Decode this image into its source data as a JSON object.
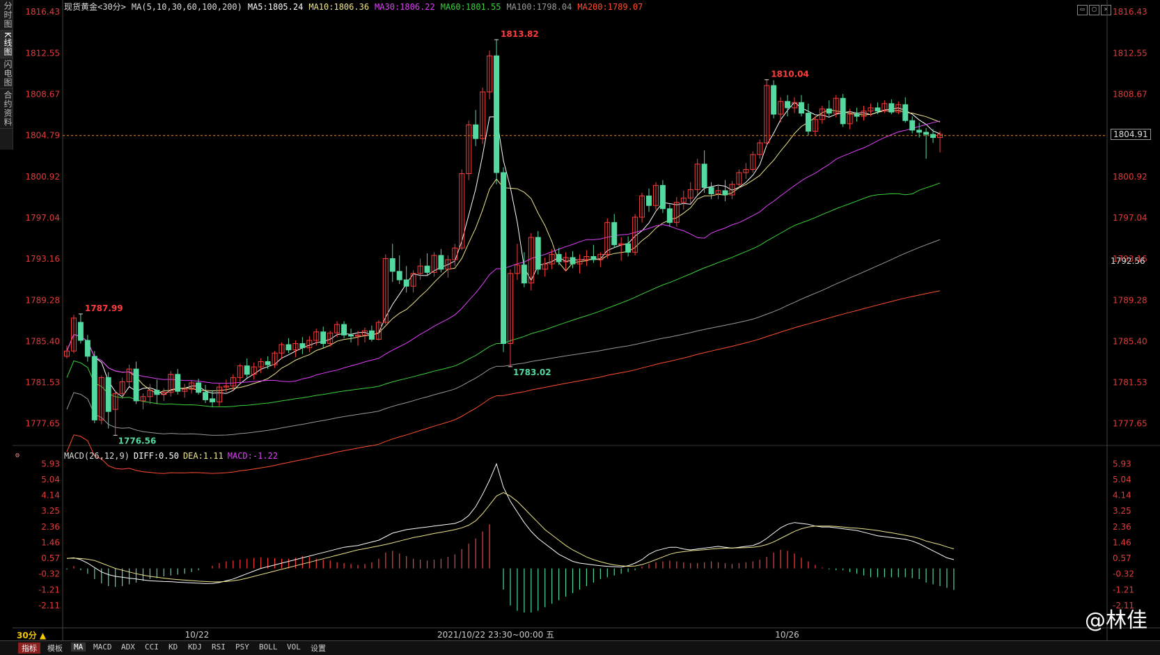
{
  "side_tabs": [
    "分时图",
    "K线图",
    "闪电图",
    "合约资料"
  ],
  "header": {
    "instrument": "现货黄金<30分>",
    "ma_params": "MA(5,10,30,60,100,200)",
    "ma5": "MA5:1805.24",
    "ma10": "MA10:1806.36",
    "ma30": "MA30:1806.22",
    "ma60": "MA60:1801.55",
    "ma100": "MA100:1798.04",
    "ma200": "MA200:1789.07"
  },
  "colors": {
    "up": "#ff3b3b",
    "down": "#54d9a0",
    "ma5": "#ffffff",
    "ma10": "#f0e68c",
    "ma30": "#e040fb",
    "ma60": "#3cd13c",
    "ma100": "#9a9a9a",
    "ma200": "#ff4d2e",
    "axis_text": "#e03b3b",
    "dashed_price": "#e08a30"
  },
  "price_axis": [
    "1816.43",
    "1812.55",
    "1808.67",
    "1804.79",
    "1800.92",
    "1797.04",
    "1793.16",
    "1789.28",
    "1785.40",
    "1781.53",
    "1777.65"
  ],
  "macd_header": {
    "label": "MACD(26,12,9)",
    "diff": "DIFF:0.50",
    "dea": "DEA:1.11",
    "macd": "MACD:-1.22"
  },
  "macd_axis": [
    "5.93",
    "5.04",
    "4.14",
    "3.25",
    "2.36",
    "1.46",
    "0.57",
    "-0.32",
    "-1.21",
    "-2.11"
  ],
  "x_axis": {
    "left_date": "10/22",
    "cursor_time": "2021/10/22 23:30~00:00 五",
    "right_date": "10/26"
  },
  "annotations": {
    "high1": "1787.99",
    "low1": "1776.56",
    "high2": "1813.82",
    "low2": "1783.02",
    "high3": "1810.04"
  },
  "current_price": "1804.91",
  "right_label_2": "1792.56",
  "dashed_price_label": "1804.79",
  "period_badge": "30分 ▲",
  "bottom_tabs": [
    "指标",
    "模板",
    "MA",
    "MACD",
    "ADX",
    "CCI",
    "KD",
    "KDJ",
    "RSI",
    "PSY",
    "BOLL",
    "VOL",
    "设置"
  ],
  "watermark": "@林佳",
  "chart_data": {
    "type": "candlestick",
    "ylim": [
      1775.6,
      1816.9
    ],
    "candles_ohlc": [
      [
        1784.0,
        1785.0,
        1783.8,
        1784.5
      ],
      [
        1784.5,
        1787.9,
        1784.3,
        1787.6
      ],
      [
        1787.2,
        1787.99,
        1785.2,
        1785.5
      ],
      [
        1785.5,
        1786.0,
        1783.5,
        1784.0
      ],
      [
        1784.0,
        1784.5,
        1777.7,
        1778.0
      ],
      [
        1778.0,
        1782.2,
        1777.6,
        1782.0
      ],
      [
        1782.0,
        1782.5,
        1777.2,
        1778.8
      ],
      [
        1779.0,
        1780.8,
        1776.56,
        1780.5
      ],
      [
        1780.5,
        1782.0,
        1780.0,
        1781.6
      ],
      [
        1781.6,
        1783.2,
        1781.2,
        1782.8
      ],
      [
        1782.8,
        1783.5,
        1779.5,
        1779.8
      ],
      [
        1779.8,
        1780.5,
        1779.0,
        1780.2
      ],
      [
        1780.2,
        1781.4,
        1779.5,
        1780.8
      ],
      [
        1780.8,
        1781.8,
        1779.5,
        1780.4
      ],
      [
        1780.4,
        1781.0,
        1779.8,
        1780.6
      ],
      [
        1780.6,
        1782.6,
        1780.2,
        1782.3
      ],
      [
        1782.3,
        1782.8,
        1780.4,
        1780.7
      ],
      [
        1780.7,
        1781.4,
        1780.1,
        1780.9
      ],
      [
        1780.9,
        1781.7,
        1780.5,
        1781.5
      ],
      [
        1781.5,
        1781.9,
        1780.4,
        1780.6
      ],
      [
        1780.6,
        1781.3,
        1779.6,
        1779.9
      ],
      [
        1780.0,
        1780.8,
        1779.2,
        1779.7
      ],
      [
        1779.7,
        1781.4,
        1779.3,
        1781.1
      ],
      [
        1781.1,
        1781.8,
        1780.6,
        1781.2
      ],
      [
        1781.2,
        1782.3,
        1780.8,
        1782.0
      ],
      [
        1782.0,
        1783.3,
        1781.6,
        1783.1
      ],
      [
        1783.1,
        1783.8,
        1782.0,
        1782.3
      ],
      [
        1782.3,
        1783.4,
        1781.8,
        1783.0
      ],
      [
        1783.0,
        1783.8,
        1782.4,
        1783.5
      ],
      [
        1783.5,
        1784.0,
        1782.8,
        1783.2
      ],
      [
        1783.2,
        1784.5,
        1782.9,
        1784.3
      ],
      [
        1784.3,
        1785.3,
        1783.8,
        1785.1
      ],
      [
        1785.1,
        1785.7,
        1784.3,
        1784.6
      ],
      [
        1784.6,
        1785.5,
        1783.9,
        1785.2
      ],
      [
        1785.2,
        1785.8,
        1784.2,
        1784.8
      ],
      [
        1784.8,
        1785.9,
        1784.4,
        1785.5
      ],
      [
        1785.5,
        1786.6,
        1785.0,
        1786.3
      ],
      [
        1786.3,
        1786.8,
        1784.8,
        1785.2
      ],
      [
        1785.2,
        1786.4,
        1784.9,
        1786.2
      ],
      [
        1786.2,
        1787.3,
        1785.8,
        1787.0
      ],
      [
        1787.0,
        1787.3,
        1785.7,
        1786.0
      ],
      [
        1786.0,
        1786.6,
        1785.3,
        1785.9
      ],
      [
        1785.9,
        1786.4,
        1785.0,
        1786.0
      ],
      [
        1786.0,
        1786.7,
        1785.3,
        1786.4
      ],
      [
        1786.4,
        1786.9,
        1785.4,
        1785.6
      ],
      [
        1785.6,
        1787.4,
        1785.5,
        1787.2
      ],
      [
        1787.2,
        1793.6,
        1787.0,
        1793.2
      ],
      [
        1793.2,
        1794.6,
        1791.0,
        1792.0
      ],
      [
        1792.0,
        1793.5,
        1790.8,
        1791.2
      ],
      [
        1791.2,
        1792.5,
        1790.0,
        1790.6
      ],
      [
        1790.6,
        1792.1,
        1790.0,
        1791.8
      ],
      [
        1791.8,
        1793.2,
        1791.2,
        1792.5
      ],
      [
        1792.5,
        1793.7,
        1791.6,
        1791.9
      ],
      [
        1791.9,
        1793.8,
        1791.5,
        1793.5
      ],
      [
        1793.5,
        1794.1,
        1791.9,
        1792.2
      ],
      [
        1792.2,
        1793.5,
        1791.4,
        1793.1
      ],
      [
        1793.1,
        1794.6,
        1792.5,
        1794.2
      ],
      [
        1794.2,
        1801.6,
        1794.0,
        1801.2
      ],
      [
        1801.2,
        1806.2,
        1800.6,
        1805.8
      ],
      [
        1805.8,
        1807.2,
        1803.8,
        1804.5
      ],
      [
        1804.5,
        1809.3,
        1804.0,
        1808.9
      ],
      [
        1808.9,
        1812.8,
        1808.2,
        1812.3
      ],
      [
        1812.3,
        1813.82,
        1800.2,
        1801.3
      ],
      [
        1801.3,
        1801.8,
        1784.4,
        1785.2
      ],
      [
        1785.2,
        1792.2,
        1783.02,
        1791.8
      ],
      [
        1791.8,
        1794.6,
        1791.2,
        1792.6
      ],
      [
        1792.6,
        1793.8,
        1790.5,
        1790.9
      ],
      [
        1790.9,
        1795.6,
        1790.2,
        1795.2
      ],
      [
        1795.2,
        1795.8,
        1791.7,
        1792.2
      ],
      [
        1792.2,
        1793.3,
        1791.5,
        1792.7
      ],
      [
        1792.7,
        1794.1,
        1792.2,
        1793.6
      ],
      [
        1793.6,
        1794.2,
        1792.6,
        1792.9
      ],
      [
        1792.9,
        1793.8,
        1792.0,
        1793.3
      ],
      [
        1793.3,
        1793.9,
        1792.3,
        1792.7
      ],
      [
        1792.7,
        1793.6,
        1791.8,
        1793.1
      ],
      [
        1793.1,
        1794.0,
        1792.5,
        1793.4
      ],
      [
        1793.4,
        1794.5,
        1792.8,
        1793.1
      ],
      [
        1793.1,
        1793.8,
        1792.4,
        1793.6
      ],
      [
        1793.6,
        1797.0,
        1793.2,
        1796.6
      ],
      [
        1796.6,
        1797.4,
        1794.2,
        1794.5
      ],
      [
        1794.5,
        1795.2,
        1793.0,
        1794.6
      ],
      [
        1794.6,
        1795.3,
        1793.4,
        1793.8
      ],
      [
        1793.8,
        1797.4,
        1793.5,
        1797.1
      ],
      [
        1797.1,
        1799.4,
        1796.6,
        1799.1
      ],
      [
        1799.1,
        1799.8,
        1797.6,
        1798.2
      ],
      [
        1798.2,
        1800.4,
        1797.8,
        1800.1
      ],
      [
        1800.1,
        1800.6,
        1797.5,
        1797.9
      ],
      [
        1797.9,
        1798.3,
        1796.2,
        1796.6
      ],
      [
        1796.6,
        1799.0,
        1796.2,
        1798.5
      ],
      [
        1798.5,
        1799.6,
        1797.8,
        1798.9
      ],
      [
        1798.9,
        1800.4,
        1798.4,
        1799.7
      ],
      [
        1799.7,
        1802.6,
        1799.2,
        1802.1
      ],
      [
        1802.1,
        1803.4,
        1799.4,
        1799.9
      ],
      [
        1799.9,
        1800.4,
        1798.8,
        1799.3
      ],
      [
        1799.3,
        1800.2,
        1798.8,
        1799.6
      ],
      [
        1799.6,
        1800.6,
        1798.6,
        1799.2
      ],
      [
        1799.2,
        1800.5,
        1798.8,
        1800.2
      ],
      [
        1800.2,
        1801.6,
        1799.8,
        1801.3
      ],
      [
        1801.3,
        1802.2,
        1800.7,
        1801.6
      ],
      [
        1801.6,
        1803.3,
        1801.3,
        1803.0
      ],
      [
        1803.0,
        1804.4,
        1802.6,
        1804.1
      ],
      [
        1804.1,
        1810.04,
        1803.8,
        1809.5
      ],
      [
        1809.5,
        1810.0,
        1806.4,
        1806.8
      ],
      [
        1806.8,
        1808.4,
        1806.0,
        1808.0
      ],
      [
        1808.0,
        1808.6,
        1806.6,
        1807.4
      ],
      [
        1807.4,
        1808.4,
        1806.9,
        1807.9
      ],
      [
        1807.9,
        1808.6,
        1806.6,
        1806.9
      ],
      [
        1806.9,
        1807.8,
        1804.8,
        1805.2
      ],
      [
        1805.2,
        1806.6,
        1804.8,
        1806.3
      ],
      [
        1806.3,
        1807.6,
        1805.9,
        1807.3
      ],
      [
        1807.3,
        1808.1,
        1806.6,
        1806.9
      ],
      [
        1806.9,
        1808.6,
        1806.5,
        1808.3
      ],
      [
        1808.3,
        1808.7,
        1805.6,
        1805.9
      ],
      [
        1805.9,
        1807.3,
        1805.4,
        1806.8
      ],
      [
        1806.8,
        1807.4,
        1806.1,
        1806.6
      ],
      [
        1806.6,
        1807.6,
        1806.2,
        1807.1
      ],
      [
        1807.1,
        1807.8,
        1806.6,
        1807.4
      ],
      [
        1807.4,
        1807.9,
        1806.8,
        1807.1
      ],
      [
        1807.1,
        1808.1,
        1806.9,
        1807.8
      ],
      [
        1807.8,
        1808.2,
        1806.8,
        1807.0
      ],
      [
        1807.0,
        1808.0,
        1806.8,
        1807.7
      ],
      [
        1807.7,
        1808.4,
        1806.0,
        1806.2
      ],
      [
        1806.2,
        1806.6,
        1805.0,
        1805.3
      ],
      [
        1805.3,
        1806.0,
        1804.6,
        1805.1
      ],
      [
        1805.1,
        1805.5,
        1802.6,
        1804.9
      ],
      [
        1804.9,
        1805.4,
        1804.1,
        1804.6
      ],
      [
        1804.6,
        1805.2,
        1803.2,
        1804.91
      ]
    ],
    "macd_bars": [
      -0.06,
      0.13,
      -0.1,
      -0.3,
      -0.6,
      -0.85,
      -1.0,
      -1.05,
      -1.0,
      -0.9,
      -0.8,
      -0.7,
      -0.6,
      -0.55,
      -0.45,
      -0.4,
      -0.35,
      -0.3,
      -0.2,
      -0.1,
      0.0,
      0.15,
      0.3,
      0.4,
      0.45,
      0.5,
      0.55,
      0.6,
      0.62,
      0.6,
      0.58,
      0.55,
      0.55,
      0.6,
      0.7,
      0.65,
      0.55,
      0.5,
      0.45,
      0.35,
      0.3,
      0.25,
      0.2,
      0.25,
      0.35,
      0.55,
      0.9,
      1.0,
      0.85,
      0.7,
      0.55,
      0.5,
      0.45,
      0.5,
      0.55,
      0.65,
      0.8,
      1.1,
      1.4,
      1.7,
      2.1,
      2.5,
      0.0,
      -1.2,
      -2.1,
      -2.4,
      -2.5,
      -2.5,
      -2.4,
      -2.2,
      -2.0,
      -1.8,
      -1.6,
      -1.4,
      -1.2,
      -1.0,
      -0.8,
      -0.6,
      -0.5,
      -0.4,
      -0.3,
      -0.2,
      -0.1,
      0.1,
      0.25,
      0.35,
      0.4,
      0.45,
      0.4,
      0.35,
      0.3,
      0.3,
      0.35,
      0.4,
      0.35,
      0.3,
      0.25,
      0.3,
      0.35,
      0.4,
      0.5,
      0.65,
      0.9,
      1.05,
      1.0,
      0.85,
      0.6,
      0.4,
      0.2,
      0.05,
      -0.05,
      -0.1,
      -0.1,
      -0.2,
      -0.3,
      -0.4,
      -0.5,
      -0.5,
      -0.5,
      -0.5,
      -0.5,
      -0.5,
      -0.55,
      -0.6,
      -0.8,
      -0.9,
      -1.0,
      -1.1,
      -1.22
    ],
    "diff": [
      0.57,
      0.6,
      0.5,
      0.3,
      0.05,
      -0.2,
      -0.35,
      -0.45,
      -0.5,
      -0.55,
      -0.6,
      -0.65,
      -0.7,
      -0.72,
      -0.74,
      -0.75,
      -0.78,
      -0.8,
      -0.82,
      -0.84,
      -0.86,
      -0.85,
      -0.8,
      -0.7,
      -0.6,
      -0.45,
      -0.3,
      -0.15,
      0.0,
      0.1,
      0.2,
      0.3,
      0.4,
      0.5,
      0.6,
      0.7,
      0.8,
      0.9,
      1.0,
      1.1,
      1.2,
      1.25,
      1.3,
      1.4,
      1.5,
      1.6,
      1.8,
      2.0,
      2.1,
      2.2,
      2.25,
      2.3,
      2.35,
      2.4,
      2.45,
      2.5,
      2.55,
      2.7,
      3.0,
      3.5,
      4.2,
      5.0,
      5.93,
      4.6,
      3.8,
      3.2,
      2.6,
      2.1,
      1.7,
      1.4,
      1.1,
      0.8,
      0.6,
      0.4,
      0.3,
      0.25,
      0.2,
      0.15,
      0.12,
      0.1,
      0.08,
      0.15,
      0.3,
      0.5,
      0.8,
      1.0,
      1.1,
      1.2,
      1.2,
      1.1,
      1.05,
      1.1,
      1.15,
      1.2,
      1.25,
      1.2,
      1.15,
      1.2,
      1.25,
      1.3,
      1.45,
      1.7,
      2.0,
      2.3,
      2.5,
      2.6,
      2.55,
      2.5,
      2.4,
      2.35,
      2.35,
      2.3,
      2.25,
      2.2,
      2.15,
      2.05,
      1.95,
      1.85,
      1.8,
      1.75,
      1.7,
      1.65,
      1.55,
      1.4,
      1.2,
      1.0,
      0.8,
      0.6,
      0.5
    ],
    "dea": [
      0.57,
      0.58,
      0.56,
      0.52,
      0.45,
      0.3,
      0.15,
      0.0,
      -0.1,
      -0.2,
      -0.3,
      -0.38,
      -0.45,
      -0.5,
      -0.55,
      -0.6,
      -0.63,
      -0.66,
      -0.69,
      -0.72,
      -0.74,
      -0.76,
      -0.76,
      -0.74,
      -0.7,
      -0.64,
      -0.55,
      -0.45,
      -0.35,
      -0.25,
      -0.15,
      -0.05,
      0.05,
      0.15,
      0.25,
      0.35,
      0.45,
      0.55,
      0.65,
      0.75,
      0.85,
      0.95,
      1.05,
      1.12,
      1.2,
      1.28,
      1.36,
      1.45,
      1.55,
      1.65,
      1.75,
      1.82,
      1.9,
      1.98,
      2.05,
      2.12,
      2.2,
      2.3,
      2.45,
      2.7,
      3.1,
      3.6,
      4.1,
      4.3,
      4.1,
      3.8,
      3.4,
      3.0,
      2.6,
      2.2,
      1.9,
      1.6,
      1.3,
      1.05,
      0.85,
      0.65,
      0.5,
      0.38,
      0.28,
      0.2,
      0.15,
      0.12,
      0.14,
      0.22,
      0.35,
      0.5,
      0.65,
      0.8,
      0.9,
      0.95,
      1.0,
      1.03,
      1.06,
      1.1,
      1.13,
      1.15,
      1.16,
      1.17,
      1.18,
      1.2,
      1.25,
      1.35,
      1.5,
      1.7,
      1.9,
      2.1,
      2.25,
      2.35,
      2.4,
      2.4,
      2.4,
      2.38,
      2.35,
      2.3,
      2.28,
      2.24,
      2.2,
      2.15,
      2.08,
      2.02,
      1.95,
      1.88,
      1.8,
      1.7,
      1.55,
      1.45,
      1.35,
      1.22,
      1.11
    ]
  }
}
